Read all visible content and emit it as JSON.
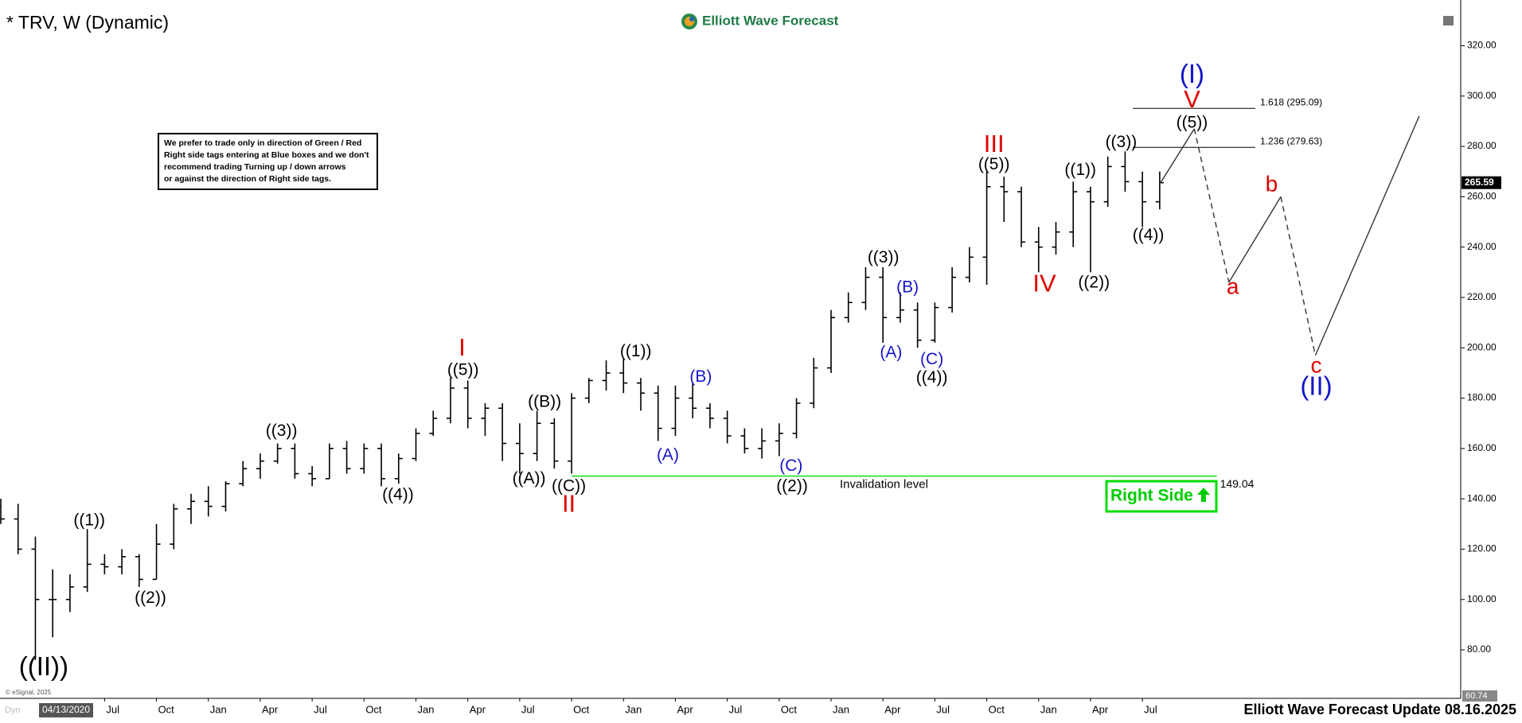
{
  "chart_data": {
    "type": "ohlc",
    "title": "* TRV, W (Dynamic)",
    "logo": "Elliott Wave Forecast",
    "footer": "Elliott Wave Forecast Update 08.16.2025",
    "copyright": "© eSignal, 2025",
    "cursor_label": "04/13/2020",
    "mode_label": "Dyn",
    "note": [
      "We prefer to trade only in direction of Green / Red",
      "Right side tags entering at Blue boxes and we don't",
      "recommend trading Turning up / down arrows",
      "or against the direction of Right side tags."
    ],
    "right_side": "Right Side",
    "color": "#000000",
    "categories": [
      null,
      null,
      null,
      null,
      null,
      null,
      "Jul",
      null,
      null,
      "Oct",
      null,
      null,
      "Jan",
      null,
      null,
      "Apr",
      null,
      null,
      "Jul",
      null,
      null,
      "Oct",
      null,
      null,
      "Jan",
      null,
      null,
      "Apr",
      null,
      null,
      "Jul",
      null,
      null,
      "Oct",
      null,
      null,
      "Jan",
      null,
      null,
      "Apr",
      null,
      null,
      "Jul",
      null,
      null,
      "Oct",
      null,
      null,
      "Jan",
      null,
      null,
      "Apr",
      null,
      null,
      "Jul",
      null,
      null,
      "Oct",
      null,
      null,
      "Jan",
      null,
      null,
      "Apr",
      null,
      null,
      "Jul",
      null,
      null,
      null,
      null,
      null,
      null,
      null,
      null,
      null,
      null,
      null,
      null,
      null,
      null,
      null,
      null,
      null,
      null
    ],
    "open": [
      137,
      132,
      120,
      100,
      100,
      105,
      114,
      113,
      117,
      108,
      122,
      136,
      139,
      137,
      146,
      152,
      155,
      160,
      150,
      148,
      160,
      152,
      160,
      148,
      156,
      166,
      172,
      184,
      172,
      176,
      162,
      158,
      170,
      155,
      180,
      187,
      190,
      186,
      182,
      168,
      180,
      176,
      172,
      165,
      160,
      163,
      166,
      178,
      192,
      212,
      218,
      228,
      212,
      215,
      203,
      216,
      228,
      236,
      264,
      262,
      242,
      240,
      246,
      262,
      258,
      272,
      266,
      258,
      null,
      null,
      null,
      null,
      null,
      null,
      null,
      null,
      null,
      null,
      null,
      null,
      null,
      null,
      null,
      null,
      null
    ],
    "high": [
      140,
      138,
      125,
      112,
      110,
      128,
      118,
      120,
      118,
      130,
      138,
      142,
      145,
      147,
      155,
      158,
      162,
      162,
      153,
      162,
      163,
      162,
      162,
      158,
      168,
      175,
      188,
      187,
      178,
      178,
      170,
      175,
      172,
      182,
      188,
      195,
      196,
      188,
      185,
      185,
      186,
      178,
      175,
      168,
      168,
      170,
      180,
      196,
      215,
      222,
      232,
      232,
      222,
      218,
      218,
      232,
      240,
      270,
      268,
      264,
      248,
      250,
      266,
      264,
      276,
      278,
      270,
      270,
      null,
      null,
      null,
      null,
      null,
      null,
      null,
      null,
      null,
      null,
      null,
      null,
      null,
      null,
      null,
      null,
      null
    ],
    "low": [
      130,
      118,
      76,
      85,
      95,
      103,
      110,
      110,
      105,
      108,
      120,
      130,
      133,
      135,
      145,
      148,
      154,
      148,
      145,
      148,
      150,
      150,
      145,
      146,
      155,
      165,
      170,
      168,
      165,
      155,
      150,
      155,
      152,
      150,
      178,
      183,
      182,
      175,
      163,
      165,
      172,
      168,
      162,
      158,
      156,
      157,
      164,
      176,
      190,
      210,
      215,
      202,
      210,
      200,
      202,
      214,
      226,
      225,
      250,
      240,
      230,
      237,
      240,
      230,
      256,
      262,
      248,
      255,
      null,
      null,
      null,
      null,
      null,
      null,
      null,
      null,
      null,
      null,
      null,
      null,
      null,
      null,
      null,
      null,
      null
    ],
    "close": [
      132,
      120,
      100,
      100,
      105,
      114,
      113,
      117,
      108,
      122,
      136,
      139,
      137,
      146,
      152,
      155,
      160,
      150,
      148,
      160,
      152,
      160,
      148,
      156,
      166,
      172,
      184,
      172,
      176,
      162,
      158,
      170,
      155,
      180,
      187,
      190,
      186,
      182,
      168,
      180,
      176,
      172,
      165,
      160,
      163,
      166,
      178,
      192,
      212,
      218,
      228,
      212,
      215,
      203,
      216,
      228,
      236,
      264,
      262,
      242,
      240,
      246,
      262,
      258,
      272,
      266,
      258,
      265.59,
      null,
      null,
      null,
      null,
      null,
      null,
      null,
      null,
      null,
      null,
      null,
      null,
      null,
      null,
      null,
      null,
      null
    ],
    "projection": {
      "color": "#333333",
      "values": [
        null,
        null,
        null,
        null,
        null,
        null,
        null,
        null,
        null,
        null,
        null,
        null,
        null,
        null,
        null,
        null,
        null,
        null,
        null,
        null,
        null,
        null,
        null,
        null,
        null,
        null,
        null,
        null,
        null,
        null,
        null,
        null,
        null,
        null,
        null,
        null,
        null,
        null,
        null,
        null,
        null,
        null,
        null,
        null,
        null,
        null,
        null,
        null,
        null,
        null,
        null,
        null,
        null,
        null,
        null,
        null,
        null,
        null,
        null,
        null,
        null,
        null,
        null,
        null,
        null,
        null,
        null,
        265,
        null,
        287,
        null,
        226,
        null,
        null,
        260,
        null,
        197,
        null,
        null,
        null,
        null,
        null,
        292,
        null,
        null
      ]
    },
    "ylim": [
      60.74,
      335
    ],
    "yticks": [
      {
        "value": 80,
        "label": "80.00"
      },
      {
        "value": 100,
        "label": "100.00"
      },
      {
        "value": 120,
        "label": "120.00"
      },
      {
        "value": 140,
        "label": "140.00"
      },
      {
        "value": 160,
        "label": "160.00"
      },
      {
        "value": 180,
        "label": "180.00"
      },
      {
        "value": 200,
        "label": "200.00"
      },
      {
        "value": 220,
        "label": "220.00"
      },
      {
        "value": 240,
        "label": "240.00"
      },
      {
        "value": 260,
        "label": "260.00"
      },
      {
        "value": 280,
        "label": "280.00"
      },
      {
        "value": 300,
        "label": "300.00"
      },
      {
        "value": 320,
        "label": "320.00"
      }
    ],
    "grid": false,
    "fib_levels": [
      {
        "value": 295.09,
        "label": "1.618 (295.09)"
      },
      {
        "value": 279.63,
        "label": "1.236 (279.63)"
      }
    ],
    "invalidation": {
      "value": 149.04,
      "text": "Invalidation level",
      "color": "#00dd00"
    },
    "wave_labels": [
      {
        "text": "((II))",
        "color": "#000000"
      },
      {
        "text": "((1))",
        "color": "#000000"
      },
      {
        "text": "((2))",
        "color": "#000000"
      },
      {
        "text": "((3))",
        "color": "#000000"
      },
      {
        "text": "((4))",
        "color": "#000000"
      },
      {
        "text": "((5))",
        "color": "#000000"
      },
      {
        "text": "I",
        "color": "#e00000"
      },
      {
        "text": "((A))",
        "color": "#000000"
      },
      {
        "text": "((B))",
        "color": "#000000"
      },
      {
        "text": "((C))",
        "color": "#000000"
      },
      {
        "text": "II",
        "color": "#e00000"
      },
      {
        "text": "((1))",
        "color": "#000000"
      },
      {
        "text": "(A)",
        "color": "#1515c8"
      },
      {
        "text": "(B)",
        "color": "#1515c8"
      },
      {
        "text": "(C)",
        "color": "#1515c8"
      },
      {
        "text": "((2))",
        "color": "#000000"
      },
      {
        "text": "((3))",
        "color": "#000000"
      },
      {
        "text": "(A)",
        "color": "#1515c8"
      },
      {
        "text": "(B)",
        "color": "#1515c8"
      },
      {
        "text": "(C)",
        "color": "#1515c8"
      },
      {
        "text": "((4))",
        "color": "#000000"
      },
      {
        "text": "((5))",
        "color": "#000000"
      },
      {
        "text": "III",
        "color": "#e00000"
      },
      {
        "text": "IV",
        "color": "#e00000"
      },
      {
        "text": "((1))",
        "color": "#000000"
      },
      {
        "text": "((2))",
        "color": "#000000"
      },
      {
        "text": "((3))",
        "color": "#000000"
      },
      {
        "text": "((4))",
        "color": "#000000"
      },
      {
        "text": "((5))",
        "color": "#000000"
      },
      {
        "text": "V",
        "color": "#e00000"
      },
      {
        "text": "(I)",
        "color": "#1515c8"
      },
      {
        "text": "a",
        "color": "#e00000"
      },
      {
        "text": "b",
        "color": "#e00000"
      },
      {
        "text": "c",
        "color": "#e00000"
      },
      {
        "text": "(II)",
        "color": "#1515c8"
      }
    ]
  }
}
